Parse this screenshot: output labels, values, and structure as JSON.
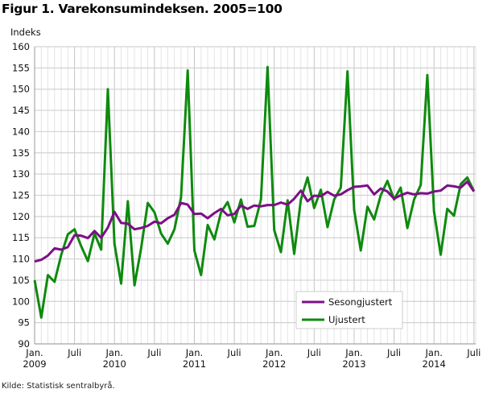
{
  "chart_data": {
    "type": "line",
    "title": "Figur 1. Varekonsumindeksen. 2005=100",
    "ylabel": "Indeks",
    "xlabel": "",
    "source": "Kilde: Statistisk sentralbyrå.",
    "ylim": [
      90,
      160
    ],
    "yticks": [
      90,
      95,
      100,
      105,
      110,
      115,
      120,
      125,
      130,
      135,
      140,
      145,
      150,
      155,
      160
    ],
    "grid": true,
    "legend_position": "bottom-right",
    "x_start": "2009-01",
    "x_end": "2014-07",
    "xtick_labels": [
      {
        "month_index": 0,
        "line1": "Jan.",
        "line2": "2009"
      },
      {
        "month_index": 6,
        "line1": "Juli",
        "line2": ""
      },
      {
        "month_index": 12,
        "line1": "Jan.",
        "line2": "2010"
      },
      {
        "month_index": 18,
        "line1": "Juli",
        "line2": ""
      },
      {
        "month_index": 24,
        "line1": "Jan.",
        "line2": "2011"
      },
      {
        "month_index": 30,
        "line1": "Juli",
        "line2": ""
      },
      {
        "month_index": 36,
        "line1": "Jan.",
        "line2": "2012"
      },
      {
        "month_index": 42,
        "line1": "Juli",
        "line2": ""
      },
      {
        "month_index": 48,
        "line1": "Jan.",
        "line2": "2013"
      },
      {
        "month_index": 54,
        "line1": "Juli",
        "line2": ""
      },
      {
        "month_index": 60,
        "line1": "Jan.",
        "line2": "2014"
      },
      {
        "month_index": 66,
        "line1": "Juli",
        "line2": ""
      }
    ],
    "series": [
      {
        "name": "Sesongjustert",
        "color": "#7d0f86",
        "values": [
          109.4,
          109.8,
          110.8,
          112.5,
          112.2,
          112.8,
          115.6,
          115.5,
          114.9,
          116.6,
          115.0,
          117.4,
          121.1,
          118.5,
          118.3,
          117.0,
          117.3,
          117.8,
          118.8,
          118.4,
          119.6,
          120.4,
          123.2,
          122.8,
          120.6,
          120.7,
          119.6,
          120.8,
          121.8,
          120.3,
          120.6,
          122.6,
          121.8,
          122.6,
          122.4,
          122.7,
          122.7,
          123.3,
          122.8,
          124.2,
          126.1,
          123.6,
          124.9,
          124.8,
          125.8,
          124.9,
          125.2,
          126.2,
          127.0,
          127.1,
          127.3,
          125.2,
          126.6,
          125.9,
          124.2,
          125.0,
          125.6,
          125.2,
          125.5,
          125.4,
          125.9,
          126.1,
          127.3,
          127.1,
          126.8,
          128.2,
          125.9
        ]
      },
      {
        "name": "Ujustert",
        "color": "#0e8a0e",
        "values": [
          105.0,
          96.2,
          106.2,
          104.6,
          111.0,
          115.8,
          117.0,
          113.0,
          109.5,
          116.0,
          112.2,
          150.0,
          113.6,
          104.2,
          123.6,
          103.8,
          112.5,
          123.2,
          121.0,
          116.0,
          113.6,
          117.0,
          124.5,
          154.4,
          112.0,
          106.2,
          118.0,
          114.6,
          121.0,
          123.4,
          118.6,
          124.0,
          117.6,
          117.8,
          124.0,
          155.2,
          116.8,
          111.6,
          123.8,
          111.2,
          124.0,
          129.2,
          122.0,
          126.3,
          117.5,
          124.0,
          126.8,
          154.2,
          121.5,
          112.0,
          122.3,
          119.3,
          125.0,
          128.4,
          124.0,
          126.8,
          117.3,
          124.0,
          127.4,
          153.3,
          121.2,
          111.0,
          121.8,
          120.2,
          127.6,
          129.2,
          126.0
        ]
      }
    ]
  }
}
